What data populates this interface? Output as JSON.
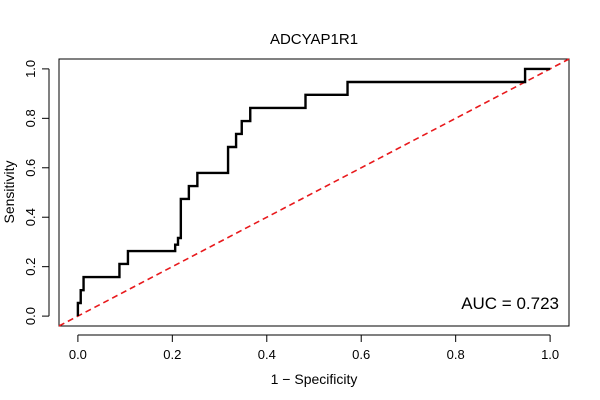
{
  "chart_data": {
    "type": "line",
    "title": "ADCYAP1R1",
    "xlabel": "1 − Specificity",
    "ylabel": "Sensitivity",
    "xlim": [
      -0.04,
      1.04
    ],
    "ylim": [
      -0.04,
      1.04
    ],
    "xticks": [
      0.0,
      0.2,
      0.4,
      0.6,
      0.8,
      1.0
    ],
    "xtick_labels": [
      "0.0",
      "0.2",
      "0.4",
      "0.6",
      "0.8",
      "1.0"
    ],
    "yticks": [
      0.0,
      0.2,
      0.4,
      0.6,
      0.8,
      1.0
    ],
    "ytick_labels": [
      "0.0",
      "0.2",
      "0.4",
      "0.6",
      "0.8",
      "1.0"
    ],
    "grid": false,
    "series": [
      {
        "name": "ROC curve",
        "color": "#000000",
        "style": "solid",
        "x": [
          0.0,
          0.0,
          0.006,
          0.006,
          0.012,
          0.012,
          0.024,
          0.024,
          0.088,
          0.088,
          0.106,
          0.106,
          0.206,
          0.206,
          0.212,
          0.212,
          0.218,
          0.218,
          0.235,
          0.235,
          0.253,
          0.253,
          0.318,
          0.318,
          0.335,
          0.335,
          0.347,
          0.347,
          0.365,
          0.365,
          0.376,
          0.376,
          0.482,
          0.482,
          0.571,
          0.571,
          0.947,
          0.947,
          1.0
        ],
        "y": [
          0.0,
          0.053,
          0.053,
          0.105,
          0.105,
          0.158,
          0.158,
          0.158,
          0.158,
          0.211,
          0.211,
          0.263,
          0.263,
          0.289,
          0.289,
          0.316,
          0.316,
          0.474,
          0.474,
          0.526,
          0.526,
          0.579,
          0.579,
          0.684,
          0.684,
          0.737,
          0.737,
          0.789,
          0.789,
          0.842,
          0.842,
          0.842,
          0.842,
          0.895,
          0.895,
          0.947,
          0.947,
          1.0,
          1.0
        ]
      },
      {
        "name": "Chance line",
        "color": "#e8191c",
        "style": "dashed",
        "x": [
          -0.04,
          1.04
        ],
        "y": [
          -0.04,
          1.04
        ]
      }
    ],
    "annotations": [
      {
        "text": "AUC = 0.723",
        "position": "bottom-right"
      }
    ]
  }
}
